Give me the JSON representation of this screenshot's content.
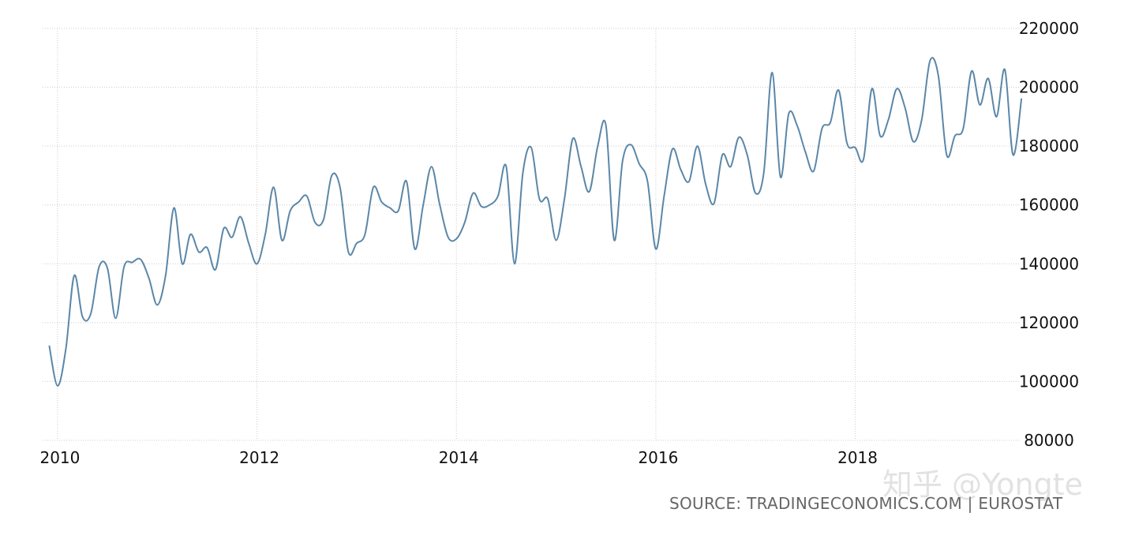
{
  "chart_data": {
    "type": "line",
    "title": "",
    "xlabel": "",
    "ylabel": "",
    "xlim": [
      2009.85,
      2019.65
    ],
    "ylim": [
      80000,
      220000
    ],
    "y_ticks": [
      80000,
      100000,
      120000,
      140000,
      160000,
      180000,
      200000,
      220000
    ],
    "y_tick_labels": [
      "80000",
      "100000",
      "120000",
      "140000",
      "160000",
      "180000",
      "200000",
      "220000"
    ],
    "x_ticks": [
      2010,
      2012,
      2014,
      2016,
      2018
    ],
    "x_tick_labels": [
      "2010",
      "2012",
      "2014",
      "2016",
      "2018"
    ],
    "grid": true,
    "y_axis_position": "right",
    "line_color": "#5b87a8",
    "series": [
      {
        "points": [
          [
            2009.917,
            112000
          ],
          [
            2010.0,
            98500
          ],
          [
            2010.083,
            111000
          ],
          [
            2010.167,
            136000
          ],
          [
            2010.25,
            122000
          ],
          [
            2010.333,
            123000
          ],
          [
            2010.417,
            139000
          ],
          [
            2010.5,
            138500
          ],
          [
            2010.583,
            121500
          ],
          [
            2010.667,
            139000
          ],
          [
            2010.75,
            140500
          ],
          [
            2010.833,
            141500
          ],
          [
            2010.917,
            135000
          ],
          [
            2011.0,
            126000
          ],
          [
            2011.083,
            136000
          ],
          [
            2011.167,
            159000
          ],
          [
            2011.25,
            140000
          ],
          [
            2011.333,
            150000
          ],
          [
            2011.417,
            144000
          ],
          [
            2011.5,
            145500
          ],
          [
            2011.583,
            138000
          ],
          [
            2011.667,
            152000
          ],
          [
            2011.75,
            149000
          ],
          [
            2011.833,
            156000
          ],
          [
            2011.917,
            147000
          ],
          [
            2012.0,
            140000
          ],
          [
            2012.083,
            150000
          ],
          [
            2012.167,
            166000
          ],
          [
            2012.25,
            148000
          ],
          [
            2012.333,
            158000
          ],
          [
            2012.417,
            161000
          ],
          [
            2012.5,
            163000
          ],
          [
            2012.583,
            154000
          ],
          [
            2012.667,
            155000
          ],
          [
            2012.75,
            170000
          ],
          [
            2012.833,
            166000
          ],
          [
            2012.917,
            144000
          ],
          [
            2013.0,
            147000
          ],
          [
            2013.083,
            150000
          ],
          [
            2013.167,
            166000
          ],
          [
            2013.25,
            161000
          ],
          [
            2013.333,
            159000
          ],
          [
            2013.417,
            158000
          ],
          [
            2013.5,
            168000
          ],
          [
            2013.583,
            145000
          ],
          [
            2013.667,
            160000
          ],
          [
            2013.75,
            173000
          ],
          [
            2013.833,
            160000
          ],
          [
            2013.917,
            149000
          ],
          [
            2014.0,
            148500
          ],
          [
            2014.083,
            154000
          ],
          [
            2014.167,
            164000
          ],
          [
            2014.25,
            159500
          ],
          [
            2014.333,
            160000
          ],
          [
            2014.417,
            163000
          ],
          [
            2014.5,
            173000
          ],
          [
            2014.583,
            140000
          ],
          [
            2014.667,
            171000
          ],
          [
            2014.75,
            179500
          ],
          [
            2014.833,
            162000
          ],
          [
            2014.917,
            162000
          ],
          [
            2015.0,
            148000
          ],
          [
            2015.083,
            162000
          ],
          [
            2015.167,
            182500
          ],
          [
            2015.25,
            173000
          ],
          [
            2015.333,
            164500
          ],
          [
            2015.417,
            180000
          ],
          [
            2015.5,
            187000
          ],
          [
            2015.583,
            148000
          ],
          [
            2015.667,
            175000
          ],
          [
            2015.75,
            180500
          ],
          [
            2015.833,
            174000
          ],
          [
            2015.917,
            168000
          ],
          [
            2016.0,
            145000
          ],
          [
            2016.083,
            163000
          ],
          [
            2016.167,
            179000
          ],
          [
            2016.25,
            172000
          ],
          [
            2016.333,
            168000
          ],
          [
            2016.417,
            180000
          ],
          [
            2016.5,
            167000
          ],
          [
            2016.583,
            160500
          ],
          [
            2016.667,
            177000
          ],
          [
            2016.75,
            173000
          ],
          [
            2016.833,
            183000
          ],
          [
            2016.917,
            177000
          ],
          [
            2017.0,
            164000
          ],
          [
            2017.083,
            171000
          ],
          [
            2017.167,
            205000
          ],
          [
            2017.25,
            169500
          ],
          [
            2017.333,
            191000
          ],
          [
            2017.417,
            187000
          ],
          [
            2017.5,
            178000
          ],
          [
            2017.583,
            171500
          ],
          [
            2017.667,
            186000
          ],
          [
            2017.75,
            188000
          ],
          [
            2017.833,
            199000
          ],
          [
            2017.917,
            181000
          ],
          [
            2018.0,
            179500
          ],
          [
            2018.083,
            175500
          ],
          [
            2018.167,
            199500
          ],
          [
            2018.25,
            183500
          ],
          [
            2018.333,
            189000
          ],
          [
            2018.417,
            199500
          ],
          [
            2018.5,
            193000
          ],
          [
            2018.583,
            181500
          ],
          [
            2018.667,
            189000
          ],
          [
            2018.75,
            209000
          ],
          [
            2018.833,
            204000
          ],
          [
            2018.917,
            177000
          ],
          [
            2019.0,
            183500
          ],
          [
            2019.083,
            186000
          ],
          [
            2019.167,
            205500
          ],
          [
            2019.25,
            194000
          ],
          [
            2019.333,
            203000
          ],
          [
            2019.417,
            190000
          ],
          [
            2019.5,
            206000
          ],
          [
            2019.583,
            177000
          ],
          [
            2019.667,
            196000
          ]
        ]
      }
    ]
  },
  "source_text": "SOURCE: TRADINGECONOMICS.COM | EUROSTAT",
  "watermark_text": "知乎 @Yongte"
}
